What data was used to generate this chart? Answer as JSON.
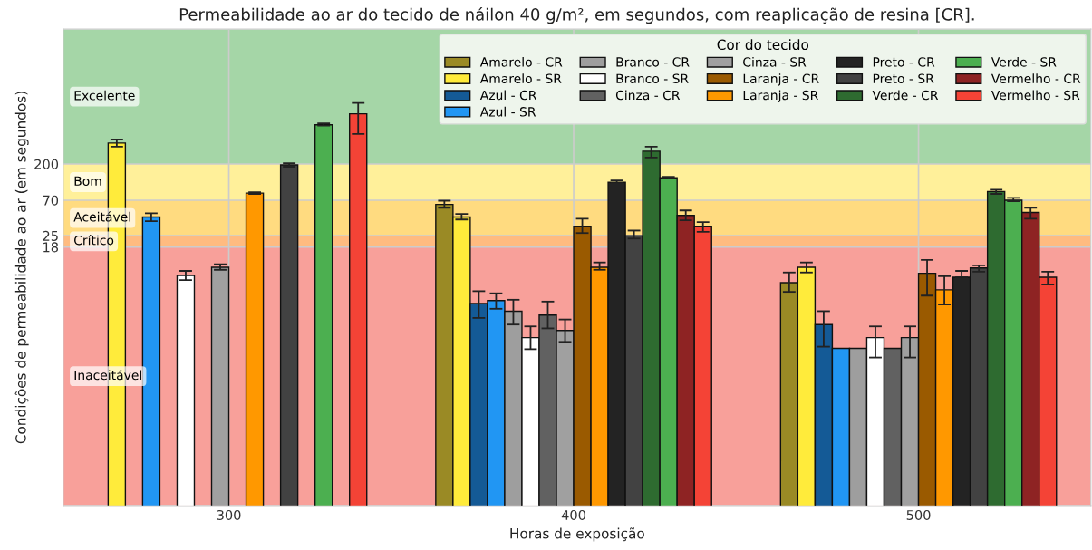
{
  "chart_data": {
    "type": "bar",
    "title": "Permeabilidade ao ar do tecido de náilon 40 g/m², em segundos, com reaplicação de resina [CR].",
    "xlabel": "Horas de exposição",
    "ylabel": "Condições de permeabilidade ao ar (em segundos)",
    "legend_title": "Cor do tecido",
    "legend": "top right",
    "grid": true,
    "log": true,
    "categories": [
      "300",
      "400",
      "500"
    ],
    "ylim": [
      0.01,
      10000
    ],
    "yticks": [
      18,
      25,
      70,
      200
    ],
    "bands": [
      {
        "axis": "y",
        "from": 200,
        "to": 10000,
        "label": "Excelente",
        "color": "#a5d6a7"
      },
      {
        "axis": "y",
        "from": 70,
        "to": 200,
        "label": "Bom",
        "color": "#fff09a"
      },
      {
        "axis": "y",
        "from": 25,
        "to": 70,
        "label": "Aceitável",
        "color": "#ffdb80"
      },
      {
        "axis": "y",
        "from": 18,
        "to": 25,
        "label": "Crítico",
        "color": "#ffbb80"
      },
      {
        "axis": "y",
        "from": 0.01,
        "to": 18,
        "label": "Inaceitável",
        "color": "#f8a09a"
      }
    ],
    "series": [
      {
        "name": "Amarelo - CR",
        "color": "#9a8a25",
        "values": [
          null,
          62,
          6.4
        ],
        "errors": [
          null,
          [
            56,
            69
          ],
          [
            4.9,
            8.6
          ]
        ]
      },
      {
        "name": "Amarelo - SR",
        "color": "#ffeb3b",
        "values": [
          367,
          43,
          10
        ],
        "errors": [
          [
            330,
            408
          ],
          [
            40,
            47
          ],
          [
            8.6,
            11.5
          ]
        ]
      },
      {
        "name": "Azul - CR",
        "color": "#145a96",
        "values": [
          null,
          3.5,
          1.9
        ],
        "errors": [
          null,
          [
            2.3,
            5.0
          ],
          [
            1.0,
            2.8
          ]
        ]
      },
      {
        "name": "Azul - SR",
        "color": "#2196f3",
        "values": [
          43,
          3.8,
          0.95
        ],
        "errors": [
          [
            38,
            48
          ],
          [
            3.0,
            4.7
          ],
          null
        ]
      },
      {
        "name": "Branco - CR",
        "color": "#9e9e9e",
        "values": [
          null,
          2.8,
          0.95
        ],
        "errors": [
          null,
          [
            1.9,
            3.9
          ],
          null
        ]
      },
      {
        "name": "Branco - SR",
        "color": "#ffffff",
        "values": [
          7.9,
          1.3,
          1.3
        ],
        "errors": [
          [
            6.9,
            9.0
          ],
          [
            0.93,
            1.8
          ],
          [
            0.73,
            1.8
          ]
        ]
      },
      {
        "name": "Cinza - CR",
        "color": "#616161",
        "values": [
          null,
          2.5,
          0.95
        ],
        "errors": [
          null,
          [
            1.7,
            3.7
          ],
          null
        ]
      },
      {
        "name": "Cinza - SR",
        "color": "#a0a0a0",
        "values": [
          10,
          1.6,
          1.3
        ],
        "errors": [
          [
            9.3,
            10.9
          ],
          [
            1.15,
            2.2
          ],
          [
            0.73,
            1.8
          ]
        ]
      },
      {
        "name": "Laranja - CR",
        "color": "#9a5a00",
        "values": [
          null,
          33,
          8.4
        ],
        "errors": [
          null,
          [
            27,
            41
          ],
          [
            4.4,
            12.4
          ]
        ]
      },
      {
        "name": "Laranja - SR",
        "color": "#ff9800",
        "values": [
          86,
          10,
          5.2
        ],
        "errors": [
          [
            84,
            88
          ],
          [
            9.3,
            11.5
          ],
          [
            3.4,
            7.7
          ]
        ]
      },
      {
        "name": "Preto - CR",
        "color": "#232323",
        "values": [
          null,
          118,
          7.5
        ],
        "errors": [
          null,
          [
            115,
            124
          ],
          [
            7.5,
            9.0
          ]
        ]
      },
      {
        "name": "Preto - SR",
        "color": "#424242",
        "values": [
          195,
          25,
          9.8
        ],
        "errors": [
          [
            185,
            205
          ],
          [
            23,
            29
          ],
          [
            8.8,
            10.6
          ]
        ]
      },
      {
        "name": "Verde - CR",
        "color": "#2e6b30",
        "values": [
          null,
          290,
          90
        ],
        "errors": [
          null,
          [
            241,
            330
          ],
          [
            84,
            95
          ]
        ]
      },
      {
        "name": "Verde - SR",
        "color": "#4caf50",
        "values": [
          624,
          134,
          70
        ],
        "errors": [
          [
            610,
            650
          ],
          [
            131,
            138
          ],
          [
            68,
            75
          ]
        ]
      },
      {
        "name": "Vermelho - CR",
        "color": "#8e2323",
        "values": [
          null,
          45,
          49
        ],
        "errors": [
          null,
          [
            39,
            52
          ],
          [
            41,
            56
          ]
        ]
      },
      {
        "name": "Vermelho - SR",
        "color": "#f44336",
        "values": [
          858,
          33,
          7.5
        ],
        "errors": [
          [
            479,
            1178
          ],
          [
            28,
            37
          ],
          [
            6.1,
            8.8
          ]
        ]
      }
    ]
  }
}
